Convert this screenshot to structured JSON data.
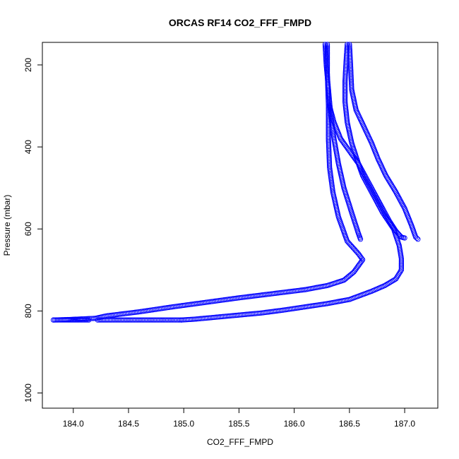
{
  "chart_data": {
    "type": "scatter",
    "title": "ORCAS RF14 CO2_FFF_FMPD",
    "xlabel": "CO2_FFF_FMPD",
    "ylabel": "Pressure (mbar)",
    "xlim": [
      183.72,
      187.3
    ],
    "ylim": [
      1037,
      145
    ],
    "y_reversed": true,
    "x_ticks": [
      "184.0",
      "184.5",
      "185.0",
      "185.5",
      "186.0",
      "186.5",
      "187.0"
    ],
    "x_tick_values": [
      184.0,
      184.5,
      185.0,
      185.5,
      186.0,
      186.5,
      187.0
    ],
    "y_ticks": [
      "200",
      "400",
      "600",
      "800",
      "1000"
    ],
    "y_tick_values": [
      200,
      400,
      600,
      800,
      1000
    ],
    "marker": "open-circle",
    "color": "#0000ff",
    "grid": false,
    "series": [
      {
        "values": [
          [
            186.28,
            150
          ],
          [
            186.29,
            200
          ],
          [
            186.31,
            260
          ],
          [
            186.33,
            320
          ],
          [
            186.36,
            380
          ],
          [
            186.4,
            440
          ],
          [
            186.45,
            500
          ],
          [
            186.52,
            560
          ],
          [
            186.58,
            610
          ],
          [
            186.6,
            625
          ]
        ]
      },
      {
        "values": [
          [
            186.3,
            150
          ],
          [
            186.3,
            220
          ],
          [
            186.31,
            300
          ],
          [
            186.31,
            380
          ],
          [
            186.32,
            450
          ],
          [
            186.35,
            510
          ],
          [
            186.4,
            570
          ],
          [
            186.48,
            630
          ],
          [
            186.58,
            660
          ],
          [
            186.62,
            675
          ],
          [
            186.58,
            690
          ],
          [
            186.54,
            705
          ],
          [
            186.45,
            725
          ],
          [
            186.3,
            738
          ],
          [
            186.1,
            748
          ],
          [
            185.8,
            758
          ],
          [
            185.5,
            768
          ],
          [
            185.2,
            779
          ],
          [
            184.9,
            790
          ],
          [
            184.6,
            802
          ],
          [
            184.3,
            812
          ],
          [
            184.2,
            818
          ],
          [
            183.95,
            821
          ],
          [
            183.82,
            822
          ]
        ]
      },
      {
        "values": [
          [
            183.82,
            822
          ],
          [
            183.95,
            822
          ],
          [
            184.05,
            822
          ],
          [
            184.14,
            822
          ]
        ]
      },
      {
        "values": [
          [
            184.22,
            822
          ],
          [
            184.35,
            822
          ],
          [
            184.5,
            822
          ],
          [
            184.65,
            822
          ],
          [
            184.8,
            822
          ],
          [
            184.98,
            822
          ]
        ]
      },
      {
        "values": [
          [
            184.98,
            822
          ],
          [
            185.1,
            820
          ],
          [
            185.3,
            815
          ],
          [
            185.5,
            810
          ],
          [
            185.7,
            805
          ],
          [
            185.9,
            798
          ],
          [
            186.1,
            790
          ],
          [
            186.3,
            782
          ],
          [
            186.5,
            772
          ],
          [
            186.7,
            752
          ],
          [
            186.82,
            738
          ],
          [
            186.92,
            722
          ],
          [
            186.97,
            700
          ],
          [
            186.97,
            672
          ],
          [
            186.95,
            640
          ],
          [
            186.9,
            600
          ],
          [
            186.8,
            560
          ],
          [
            186.7,
            510
          ],
          [
            186.62,
            470
          ],
          [
            186.58,
            440
          ],
          [
            186.52,
            390
          ],
          [
            186.48,
            340
          ],
          [
            186.46,
            290
          ],
          [
            186.46,
            240
          ],
          [
            186.47,
            190
          ],
          [
            186.48,
            150
          ]
        ]
      },
      {
        "values": [
          [
            186.5,
            150
          ],
          [
            186.51,
            200
          ],
          [
            186.52,
            260
          ],
          [
            186.56,
            310
          ],
          [
            186.63,
            350
          ],
          [
            186.7,
            390
          ],
          [
            186.76,
            430
          ],
          [
            186.83,
            470
          ],
          [
            186.92,
            510
          ],
          [
            187.0,
            550
          ],
          [
            187.06,
            590
          ],
          [
            187.1,
            620
          ],
          [
            187.12,
            625
          ]
        ]
      },
      {
        "values": [
          [
            186.32,
            300
          ],
          [
            186.36,
            340
          ],
          [
            186.42,
            380
          ],
          [
            186.5,
            410
          ],
          [
            186.58,
            440
          ],
          [
            186.64,
            470
          ],
          [
            186.72,
            510
          ],
          [
            186.8,
            550
          ],
          [
            186.86,
            580
          ],
          [
            186.92,
            605
          ],
          [
            186.97,
            620
          ],
          [
            187.0,
            622
          ]
        ]
      }
    ]
  }
}
